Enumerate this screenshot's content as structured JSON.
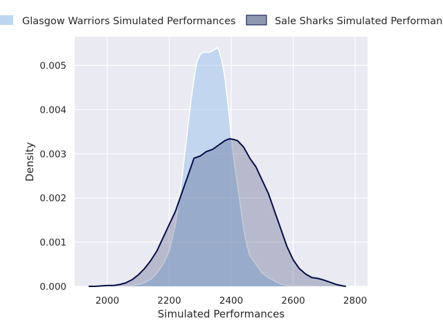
{
  "chart_data": {
    "type": "area",
    "xlabel": "Simulated Performances",
    "ylabel": "Density",
    "xlim": [
      1895,
      2840
    ],
    "ylim": [
      0,
      0.00565
    ],
    "xticks": [
      2000,
      2200,
      2400,
      2600,
      2800
    ],
    "yticks": [
      0.0,
      0.001,
      0.002,
      0.003,
      0.004,
      0.005
    ],
    "ytick_labels": [
      "0.000",
      "0.001",
      "0.002",
      "0.003",
      "0.004",
      "0.005"
    ],
    "grid": true,
    "legend_position": "top",
    "series": [
      {
        "name": "Glasgow Warriors Simulated Performances",
        "fill": "#a8c8ec",
        "fill_opacity": 0.6,
        "line": "#ffffff",
        "x": [
          2040,
          2060,
          2080,
          2100,
          2120,
          2140,
          2160,
          2180,
          2200,
          2220,
          2240,
          2260,
          2270,
          2280,
          2290,
          2300,
          2310,
          2320,
          2330,
          2340,
          2350,
          2355,
          2360,
          2370,
          2380,
          2390,
          2400,
          2410,
          2420,
          2430,
          2440,
          2450,
          2460,
          2470,
          2480,
          2490,
          2500,
          2520,
          2540,
          2560,
          2580,
          2600,
          2620,
          2640,
          2670,
          2700,
          2740,
          2770
        ],
        "y": [
          0.0,
          1e-05,
          2e-05,
          4e-05,
          8e-05,
          0.00016,
          0.0003,
          0.0005,
          0.0008,
          0.0014,
          0.0024,
          0.0036,
          0.0042,
          0.0047,
          0.0051,
          0.00525,
          0.0053,
          0.0053,
          0.0053,
          0.00533,
          0.00538,
          0.0054,
          0.00535,
          0.0051,
          0.0047,
          0.0041,
          0.0034,
          0.0028,
          0.0023,
          0.0018,
          0.0013,
          0.00095,
          0.0007,
          0.0006,
          0.0005,
          0.0004,
          0.0003,
          0.0002,
          0.00012,
          5e-05,
          2e-05,
          1e-05,
          1e-05,
          1e-05,
          0.0,
          0.0,
          0.0,
          0.0
        ]
      },
      {
        "name": "Sale Sharks Simulated Performances",
        "fill": "#1b2a5a",
        "fill_opacity": 0.25,
        "line": "#000a45",
        "x": [
          1940,
          1960,
          1980,
          2000,
          2020,
          2040,
          2060,
          2080,
          2100,
          2120,
          2140,
          2160,
          2180,
          2200,
          2220,
          2240,
          2260,
          2280,
          2300,
          2320,
          2340,
          2360,
          2380,
          2395,
          2410,
          2420,
          2440,
          2460,
          2480,
          2500,
          2520,
          2540,
          2560,
          2580,
          2600,
          2620,
          2640,
          2660,
          2680,
          2700,
          2720,
          2740,
          2760,
          2770
        ],
        "y": [
          0.0,
          0.0,
          1e-05,
          2e-05,
          2e-05,
          4e-05,
          8e-05,
          0.00015,
          0.00026,
          0.0004,
          0.00058,
          0.0008,
          0.0011,
          0.0014,
          0.0017,
          0.0021,
          0.0025,
          0.0029,
          0.00295,
          0.00305,
          0.0031,
          0.0032,
          0.0033,
          0.00334,
          0.00332,
          0.0033,
          0.00315,
          0.0029,
          0.0027,
          0.0024,
          0.0021,
          0.0017,
          0.0013,
          0.0009,
          0.0006,
          0.0004,
          0.00028,
          0.0002,
          0.00018,
          0.00014,
          9e-05,
          4e-05,
          1e-05,
          0.0
        ]
      }
    ]
  },
  "colors": {
    "plot_background": "#eaeaf2",
    "grid": "#ffffff"
  }
}
